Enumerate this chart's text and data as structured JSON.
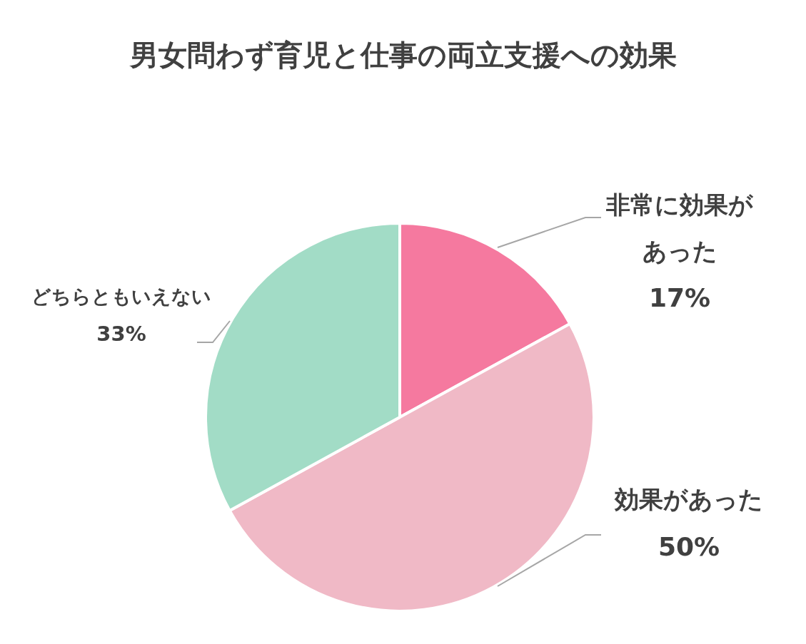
{
  "chart_data": {
    "type": "pie",
    "title": "男女問わず育児と仕事の両立支援への効果",
    "categories": [
      "非常に効果があった",
      "効果があった",
      "どちらともいえない"
    ],
    "values": [
      17,
      50,
      33
    ],
    "value_labels": [
      "17%",
      "50%",
      "33%"
    ],
    "colors": [
      "#f5799f",
      "#f0b9c6",
      "#a2dcc6"
    ]
  }
}
